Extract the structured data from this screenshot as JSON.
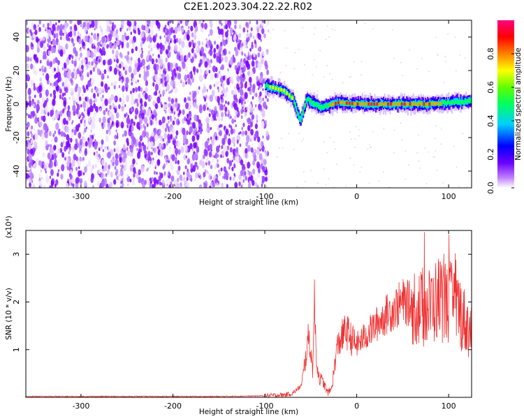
{
  "title": "C2E1.2023.304.22.22.R02",
  "colors": {
    "snr_line": "#ee3333",
    "heat_low": "#7a00ff",
    "heat_band": "#ff2222"
  },
  "chart_data": [
    {
      "type": "heatmap",
      "xlabel": "Height of straight line (km)",
      "ylabel": "Frequency (Hz)",
      "xlim": [
        -360,
        125
      ],
      "ylim": [
        -50,
        50
      ],
      "xticks": [
        -300,
        -200,
        -100,
        0,
        100
      ],
      "yticks": [
        -40,
        -20,
        0,
        20,
        40
      ],
      "colorbar": {
        "label": "Normalized spectral amplitude",
        "ticks": [
          "0.0",
          "0.2",
          "0.4",
          "0.6",
          "0.8"
        ],
        "range": [
          0,
          1
        ]
      },
      "features": {
        "noise_region_x": [
          -360,
          -100
        ],
        "signal_track": [
          {
            "x": -100,
            "y": 11
          },
          {
            "x": -80,
            "y": 8
          },
          {
            "x": -70,
            "y": 3
          },
          {
            "x": -62,
            "y": -10
          },
          {
            "x": -55,
            "y": 3
          },
          {
            "x": -40,
            "y": -2
          },
          {
            "x": -20,
            "y": 1
          },
          {
            "x": 0,
            "y": 0
          },
          {
            "x": 40,
            "y": 0
          },
          {
            "x": 80,
            "y": 0
          },
          {
            "x": 125,
            "y": 2
          }
        ]
      }
    },
    {
      "type": "line",
      "xlabel": "Height of straight line (km)",
      "ylabel": "SNR (10 * v/v)",
      "scale_label": "(x10⁴)",
      "xlim": [
        -360,
        125
      ],
      "ylim": [
        0,
        3.5
      ],
      "xticks": [
        -300,
        -200,
        -100,
        0,
        100
      ],
      "yticks": [
        1,
        2,
        3
      ],
      "series": [
        {
          "x": [
            -360,
            -150,
            -100,
            -80,
            -70,
            -60,
            -52,
            -48,
            -46,
            -44,
            -42,
            -40,
            -36,
            -32,
            -28,
            -25,
            -22,
            -18,
            -15,
            -12,
            -8,
            -5,
            0,
            10,
            20,
            30,
            40,
            50,
            60,
            70,
            80,
            90,
            100,
            110,
            120,
            125
          ],
          "y": [
            0.02,
            0.02,
            0.03,
            0.05,
            0.08,
            0.25,
            1.3,
            0.6,
            1.95,
            0.9,
            0.5,
            0.4,
            0.3,
            0.1,
            0.15,
            0.5,
            1.0,
            1.2,
            1.3,
            1.4,
            1.3,
            1.2,
            1.1,
            1.3,
            1.5,
            1.7,
            1.85,
            2.0,
            1.95,
            1.85,
            1.9,
            2.1,
            2.0,
            1.9,
            1.5,
            1.4
          ]
        }
      ]
    }
  ]
}
